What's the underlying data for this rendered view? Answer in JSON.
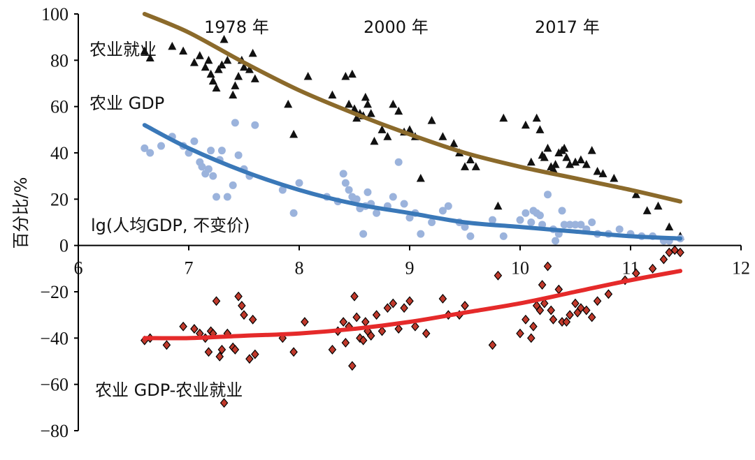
{
  "chart_data": {
    "type": "scatter",
    "ylabel": "百分比/%",
    "xlabel": "",
    "title": "",
    "xlim": [
      6,
      12
    ],
    "ylim": [
      -80,
      100
    ],
    "x_ticks": [
      "6",
      "7",
      "8",
      "9",
      "10",
      "11",
      "12"
    ],
    "y_ticks": [
      "100",
      "80",
      "60",
      "40",
      "20",
      "0",
      "−20",
      "−40",
      "−60",
      "−80"
    ],
    "annotations": {
      "year_1978": "1978 年",
      "year_2000": "2000 年",
      "year_2017": "2017 年",
      "ag_employment": "农业就业",
      "ag_gdp": "农业 GDP",
      "x_axis_note": "lg(人均GDP, 不变价)",
      "difference": "农业 GDP-农业就业"
    },
    "colors": {
      "employment": "#111111",
      "employment_trend": "#8B6A2B",
      "gdp": "#9BB3DC",
      "gdp_trend": "#3A78B8",
      "difference": "#C0392B",
      "difference_trend": "#E52A2A"
    },
    "series": [
      {
        "name": "农业就业",
        "marker": "triangle",
        "points": [
          [
            6.6,
            84
          ],
          [
            6.65,
            81
          ],
          [
            6.85,
            86
          ],
          [
            6.95,
            84
          ],
          [
            7.05,
            79
          ],
          [
            7.1,
            82
          ],
          [
            7.15,
            77
          ],
          [
            7.18,
            80
          ],
          [
            7.2,
            74
          ],
          [
            7.22,
            71
          ],
          [
            7.25,
            68
          ],
          [
            7.27,
            76
          ],
          [
            7.3,
            78
          ],
          [
            7.32,
            89
          ],
          [
            7.35,
            80
          ],
          [
            7.4,
            65
          ],
          [
            7.42,
            69
          ],
          [
            7.45,
            73
          ],
          [
            7.48,
            80
          ],
          [
            7.5,
            77
          ],
          [
            7.55,
            76
          ],
          [
            7.58,
            83
          ],
          [
            7.6,
            72
          ],
          [
            7.9,
            61
          ],
          [
            7.95,
            48
          ],
          [
            8.08,
            73
          ],
          [
            8.3,
            65
          ],
          [
            8.42,
            73
          ],
          [
            8.45,
            61
          ],
          [
            8.48,
            74
          ],
          [
            8.5,
            59
          ],
          [
            8.52,
            55
          ],
          [
            8.55,
            57
          ],
          [
            8.58,
            56
          ],
          [
            8.6,
            64
          ],
          [
            8.62,
            61
          ],
          [
            8.65,
            57
          ],
          [
            8.68,
            45
          ],
          [
            8.75,
            50
          ],
          [
            8.8,
            47
          ],
          [
            8.85,
            61
          ],
          [
            8.9,
            58
          ],
          [
            8.95,
            49
          ],
          [
            9.0,
            50
          ],
          [
            9.05,
            47
          ],
          [
            9.1,
            29
          ],
          [
            9.2,
            54
          ],
          [
            9.3,
            47
          ],
          [
            9.4,
            44
          ],
          [
            9.45,
            40
          ],
          [
            9.5,
            34
          ],
          [
            9.55,
            37
          ],
          [
            9.6,
            34
          ],
          [
            9.8,
            17
          ],
          [
            9.85,
            55
          ],
          [
            10.05,
            52
          ],
          [
            10.1,
            36
          ],
          [
            10.15,
            55
          ],
          [
            10.18,
            50
          ],
          [
            10.2,
            39
          ],
          [
            10.22,
            38
          ],
          [
            10.25,
            42
          ],
          [
            10.28,
            34
          ],
          [
            10.3,
            33
          ],
          [
            10.32,
            35
          ],
          [
            10.35,
            40
          ],
          [
            10.38,
            41
          ],
          [
            10.4,
            42
          ],
          [
            10.42,
            38
          ],
          [
            10.45,
            35
          ],
          [
            10.5,
            36
          ],
          [
            10.55,
            37
          ],
          [
            10.6,
            35
          ],
          [
            10.65,
            41
          ],
          [
            10.7,
            32
          ],
          [
            10.75,
            31
          ],
          [
            10.85,
            29
          ],
          [
            11.05,
            22
          ],
          [
            11.15,
            15
          ],
          [
            11.25,
            17
          ],
          [
            11.35,
            8
          ],
          [
            11.45,
            4
          ]
        ]
      },
      {
        "name": "农业 GDP",
        "marker": "circle",
        "points": [
          [
            6.6,
            42
          ],
          [
            6.65,
            40
          ],
          [
            6.75,
            43
          ],
          [
            6.85,
            47
          ],
          [
            6.95,
            43
          ],
          [
            7.0,
            40
          ],
          [
            7.05,
            45
          ],
          [
            7.1,
            36
          ],
          [
            7.12,
            34
          ],
          [
            7.15,
            31
          ],
          [
            7.18,
            33
          ],
          [
            7.2,
            41
          ],
          [
            7.22,
            30
          ],
          [
            7.25,
            21
          ],
          [
            7.28,
            37
          ],
          [
            7.3,
            41
          ],
          [
            7.35,
            21
          ],
          [
            7.4,
            26
          ],
          [
            7.42,
            53
          ],
          [
            7.45,
            39
          ],
          [
            7.5,
            33
          ],
          [
            7.55,
            30
          ],
          [
            7.6,
            52
          ],
          [
            7.85,
            24
          ],
          [
            7.95,
            14
          ],
          [
            8.0,
            27
          ],
          [
            8.25,
            21
          ],
          [
            8.35,
            19
          ],
          [
            8.4,
            31
          ],
          [
            8.42,
            27
          ],
          [
            8.45,
            24
          ],
          [
            8.48,
            21
          ],
          [
            8.5,
            19
          ],
          [
            8.52,
            20
          ],
          [
            8.55,
            16
          ],
          [
            8.58,
            5
          ],
          [
            8.6,
            17
          ],
          [
            8.62,
            23
          ],
          [
            8.65,
            18
          ],
          [
            8.7,
            14
          ],
          [
            8.8,
            17
          ],
          [
            8.85,
            21
          ],
          [
            8.9,
            36
          ],
          [
            8.95,
            18
          ],
          [
            9.0,
            12
          ],
          [
            9.05,
            14
          ],
          [
            9.1,
            5
          ],
          [
            9.2,
            10
          ],
          [
            9.3,
            15
          ],
          [
            9.35,
            17
          ],
          [
            9.45,
            10
          ],
          [
            9.5,
            8
          ],
          [
            9.55,
            4
          ],
          [
            9.75,
            11
          ],
          [
            9.85,
            4
          ],
          [
            10.0,
            11
          ],
          [
            10.05,
            14
          ],
          [
            10.1,
            10
          ],
          [
            10.12,
            15
          ],
          [
            10.15,
            14
          ],
          [
            10.18,
            13
          ],
          [
            10.2,
            9
          ],
          [
            10.25,
            22
          ],
          [
            10.3,
            7
          ],
          [
            10.32,
            2
          ],
          [
            10.35,
            5
          ],
          [
            10.38,
            15
          ],
          [
            10.4,
            9
          ],
          [
            10.45,
            9
          ],
          [
            10.5,
            9
          ],
          [
            10.55,
            9
          ],
          [
            10.6,
            7
          ],
          [
            10.65,
            10
          ],
          [
            10.7,
            5
          ],
          [
            10.8,
            5
          ],
          [
            10.9,
            7
          ],
          [
            11.0,
            5
          ],
          [
            11.1,
            4
          ],
          [
            11.2,
            4
          ],
          [
            11.3,
            2
          ],
          [
            11.35,
            2
          ],
          [
            11.45,
            3
          ]
        ]
      },
      {
        "name": "农业 GDP-农业就业",
        "marker": "diamond",
        "points": [
          [
            6.6,
            -41
          ],
          [
            6.65,
            -40
          ],
          [
            6.8,
            -43
          ],
          [
            6.95,
            -35
          ],
          [
            7.05,
            -36
          ],
          [
            7.1,
            -38
          ],
          [
            7.15,
            -40
          ],
          [
            7.18,
            -46
          ],
          [
            7.2,
            -37
          ],
          [
            7.22,
            -38
          ],
          [
            7.25,
            -24
          ],
          [
            7.28,
            -48
          ],
          [
            7.3,
            -45
          ],
          [
            7.32,
            -68
          ],
          [
            7.35,
            -38
          ],
          [
            7.4,
            -44
          ],
          [
            7.42,
            -45
          ],
          [
            7.45,
            -22
          ],
          [
            7.48,
            -26
          ],
          [
            7.5,
            -30
          ],
          [
            7.55,
            -49
          ],
          [
            7.58,
            -32
          ],
          [
            7.6,
            -47
          ],
          [
            7.85,
            -40
          ],
          [
            7.95,
            -46
          ],
          [
            8.05,
            -33
          ],
          [
            8.3,
            -45
          ],
          [
            8.35,
            -37
          ],
          [
            8.4,
            -33
          ],
          [
            8.42,
            -42
          ],
          [
            8.45,
            -35
          ],
          [
            8.48,
            -52
          ],
          [
            8.5,
            -22
          ],
          [
            8.52,
            -31
          ],
          [
            8.55,
            -40
          ],
          [
            8.58,
            -41
          ],
          [
            8.6,
            -33
          ],
          [
            8.62,
            -37
          ],
          [
            8.65,
            -39
          ],
          [
            8.7,
            -30
          ],
          [
            8.75,
            -37
          ],
          [
            8.8,
            -27
          ],
          [
            8.85,
            -25
          ],
          [
            8.9,
            -36
          ],
          [
            8.95,
            -27
          ],
          [
            9.0,
            -24
          ],
          [
            9.05,
            -35
          ],
          [
            9.15,
            -38
          ],
          [
            9.3,
            -23
          ],
          [
            9.35,
            -30
          ],
          [
            9.45,
            -30
          ],
          [
            9.5,
            -26
          ],
          [
            9.75,
            -43
          ],
          [
            9.8,
            -13
          ],
          [
            10.0,
            -38
          ],
          [
            10.05,
            -32
          ],
          [
            10.1,
            -40
          ],
          [
            10.12,
            -35
          ],
          [
            10.15,
            -26
          ],
          [
            10.18,
            -28
          ],
          [
            10.2,
            -17
          ],
          [
            10.22,
            -25
          ],
          [
            10.25,
            -9
          ],
          [
            10.28,
            -28
          ],
          [
            10.3,
            -32
          ],
          [
            10.35,
            -19
          ],
          [
            10.38,
            -33
          ],
          [
            10.42,
            -33
          ],
          [
            10.45,
            -30
          ],
          [
            10.5,
            -25
          ],
          [
            10.52,
            -29
          ],
          [
            10.55,
            -27
          ],
          [
            10.6,
            -28
          ],
          [
            10.65,
            -31
          ],
          [
            10.7,
            -24
          ],
          [
            10.8,
            -21
          ],
          [
            10.95,
            -15
          ],
          [
            11.05,
            -12
          ],
          [
            11.2,
            -10
          ],
          [
            11.3,
            -6
          ],
          [
            11.35,
            -3
          ],
          [
            11.4,
            -2
          ],
          [
            11.45,
            -3
          ]
        ]
      }
    ],
    "trendlines": [
      {
        "name": "农业就业 trend",
        "x": [
          6.6,
          7,
          7.5,
          8,
          8.5,
          9,
          9.5,
          10,
          10.5,
          11,
          11.45
        ],
        "y": [
          102,
          92,
          79,
          67,
          57,
          48,
          40,
          34,
          29,
          24,
          19
        ]
      },
      {
        "name": "农业 GDP trend",
        "x": [
          6.6,
          7,
          7.5,
          8,
          8.5,
          9,
          9.5,
          10,
          10.5,
          11,
          11.45
        ],
        "y": [
          52,
          42,
          32,
          24,
          18,
          14,
          10,
          8,
          6,
          4,
          3
        ]
      },
      {
        "name": "差值 trend",
        "x": [
          6.6,
          7,
          7.5,
          8,
          8.5,
          9,
          9.5,
          10,
          10.5,
          11,
          11.45
        ],
        "y": [
          -40,
          -40,
          -39,
          -38,
          -36,
          -33,
          -29,
          -25,
          -20,
          -15,
          -11
        ]
      }
    ]
  }
}
